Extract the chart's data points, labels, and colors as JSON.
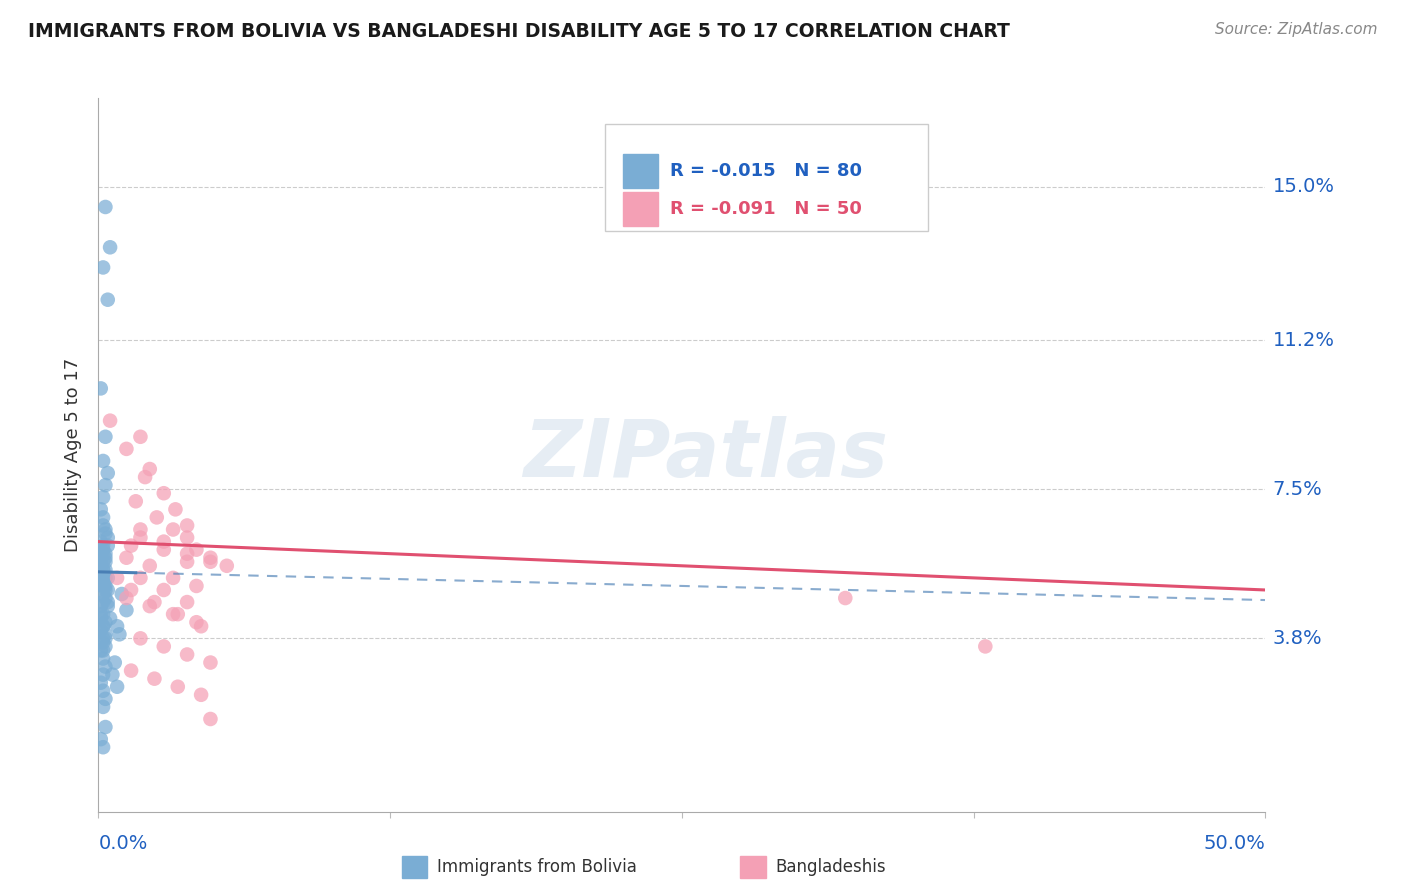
{
  "title": "IMMIGRANTS FROM BOLIVIA VS BANGLADESHI DISABILITY AGE 5 TO 17 CORRELATION CHART",
  "source": "Source: ZipAtlas.com",
  "ylabel": "Disability Age 5 to 17",
  "ytick_labels": [
    "3.8%",
    "7.5%",
    "11.2%",
    "15.0%"
  ],
  "ytick_values": [
    0.038,
    0.075,
    0.112,
    0.15
  ],
  "xlim": [
    0.0,
    0.5
  ],
  "ylim": [
    -0.005,
    0.172
  ],
  "legend_blue_r": "R = -0.015",
  "legend_blue_n": "N = 80",
  "legend_pink_r": "R = -0.091",
  "legend_pink_n": "N = 50",
  "legend_label_blue": "Immigrants from Bolivia",
  "legend_label_pink": "Bangladeshis",
  "color_blue": "#7aadd4",
  "color_pink": "#f4a0b5",
  "color_blue_line": "#4a7fb5",
  "color_pink_line": "#e05070",
  "color_blue_text": "#2060c0",
  "watermark": "ZIPatlas",
  "blue_x": [
    0.002,
    0.004,
    0.003,
    0.005,
    0.001,
    0.003,
    0.002,
    0.004,
    0.003,
    0.002,
    0.001,
    0.002,
    0.003,
    0.004,
    0.002,
    0.003,
    0.001,
    0.002,
    0.004,
    0.003,
    0.001,
    0.002,
    0.003,
    0.002,
    0.001,
    0.003,
    0.002,
    0.004,
    0.002,
    0.003,
    0.001,
    0.002,
    0.003,
    0.002,
    0.001,
    0.002,
    0.003,
    0.001,
    0.002,
    0.003,
    0.001,
    0.002,
    0.003,
    0.002,
    0.001,
    0.002,
    0.003,
    0.002,
    0.001,
    0.002,
    0.003,
    0.002,
    0.001,
    0.002,
    0.003,
    0.002,
    0.001,
    0.002,
    0.003,
    0.002,
    0.01,
    0.012,
    0.008,
    0.009,
    0.007,
    0.006,
    0.008,
    0.002,
    0.003,
    0.004,
    0.001,
    0.002,
    0.003,
    0.004,
    0.002,
    0.003,
    0.001,
    0.002,
    0.004,
    0.005
  ],
  "blue_y": [
    0.13,
    0.122,
    0.145,
    0.135,
    0.1,
    0.088,
    0.082,
    0.079,
    0.076,
    0.073,
    0.07,
    0.068,
    0.065,
    0.063,
    0.06,
    0.058,
    0.055,
    0.053,
    0.05,
    0.048,
    0.062,
    0.059,
    0.057,
    0.055,
    0.053,
    0.051,
    0.049,
    0.047,
    0.061,
    0.059,
    0.057,
    0.055,
    0.053,
    0.051,
    0.046,
    0.044,
    0.042,
    0.04,
    0.038,
    0.036,
    0.043,
    0.041,
    0.039,
    0.037,
    0.035,
    0.033,
    0.031,
    0.029,
    0.027,
    0.025,
    0.023,
    0.021,
    0.056,
    0.053,
    0.05,
    0.047,
    0.044,
    0.041,
    0.038,
    0.035,
    0.049,
    0.045,
    0.041,
    0.039,
    0.032,
    0.029,
    0.026,
    0.066,
    0.064,
    0.061,
    0.059,
    0.057,
    0.055,
    0.053,
    0.051,
    0.016,
    0.013,
    0.011,
    0.046,
    0.043
  ],
  "pink_x": [
    0.005,
    0.012,
    0.02,
    0.016,
    0.025,
    0.032,
    0.038,
    0.042,
    0.048,
    0.055,
    0.018,
    0.022,
    0.028,
    0.033,
    0.038,
    0.012,
    0.022,
    0.032,
    0.042,
    0.018,
    0.028,
    0.038,
    0.048,
    0.012,
    0.022,
    0.032,
    0.042,
    0.018,
    0.028,
    0.038,
    0.008,
    0.014,
    0.024,
    0.034,
    0.044,
    0.018,
    0.028,
    0.038,
    0.048,
    0.014,
    0.024,
    0.034,
    0.044,
    0.018,
    0.028,
    0.038,
    0.048,
    0.014,
    0.38,
    0.32
  ],
  "pink_y": [
    0.092,
    0.085,
    0.078,
    0.072,
    0.068,
    0.065,
    0.063,
    0.06,
    0.058,
    0.056,
    0.088,
    0.08,
    0.074,
    0.07,
    0.066,
    0.058,
    0.056,
    0.053,
    0.051,
    0.065,
    0.062,
    0.059,
    0.057,
    0.048,
    0.046,
    0.044,
    0.042,
    0.063,
    0.06,
    0.057,
    0.053,
    0.05,
    0.047,
    0.044,
    0.041,
    0.038,
    0.036,
    0.034,
    0.032,
    0.03,
    0.028,
    0.026,
    0.024,
    0.053,
    0.05,
    0.047,
    0.018,
    0.061,
    0.036,
    0.048
  ],
  "blue_line_x": [
    0.0,
    0.5
  ],
  "blue_line_y": [
    0.0545,
    0.0475
  ],
  "pink_line_x": [
    0.0,
    0.5
  ],
  "pink_line_y": [
    0.062,
    0.05
  ]
}
